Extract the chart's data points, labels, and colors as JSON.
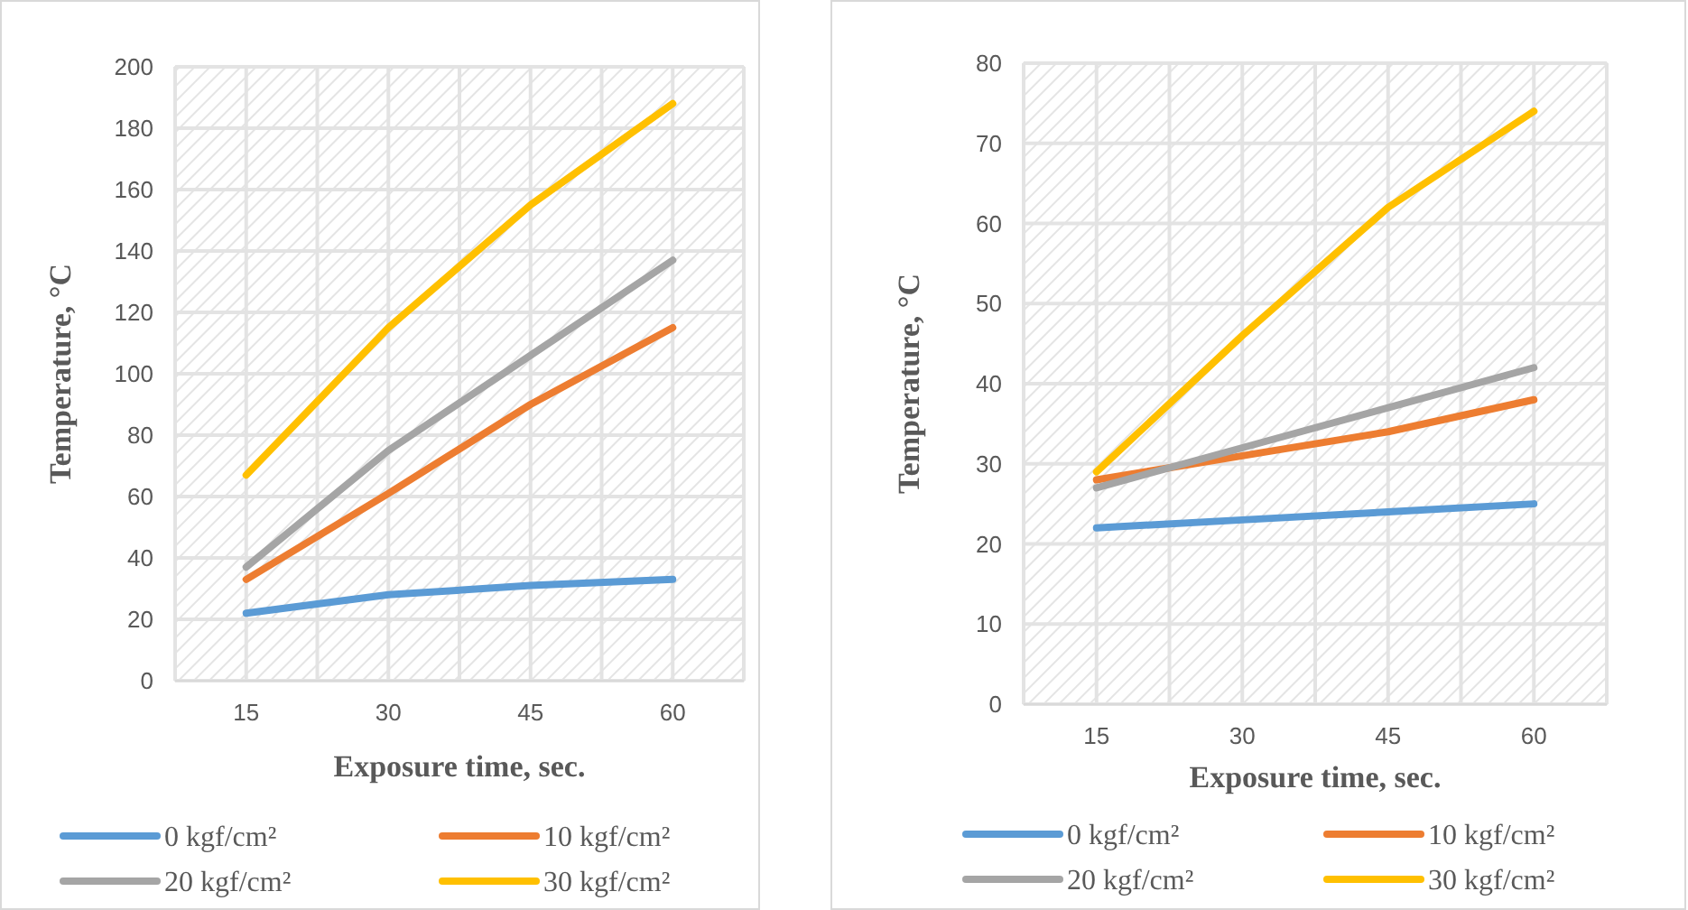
{
  "chart_data": [
    {
      "type": "line",
      "xlabel": "Exposure time, sec.",
      "ylabel": "Temperature, °C",
      "categories": [
        "15",
        "30",
        "45",
        "60"
      ],
      "ylim": [
        0,
        200
      ],
      "yticks": [
        0,
        20,
        40,
        60,
        80,
        100,
        120,
        140,
        160,
        180,
        200
      ],
      "grid": true,
      "legend": "bottom",
      "series": [
        {
          "name": "0 kgf/cm²",
          "color": "#5b9bd5",
          "values": [
            22,
            28,
            31,
            33
          ]
        },
        {
          "name": "10 kgf/cm²",
          "color": "#ed7d31",
          "values": [
            33,
            61,
            90,
            115
          ]
        },
        {
          "name": "20 kgf/cm²",
          "color": "#a5a5a5",
          "values": [
            37,
            75,
            106,
            137
          ]
        },
        {
          "name": "30 kgf/cm²",
          "color": "#ffc000",
          "values": [
            67,
            115,
            155,
            188
          ]
        }
      ]
    },
    {
      "type": "line",
      "xlabel": "Exposure time, sec.",
      "ylabel": "Temperature, °C",
      "categories": [
        "15",
        "30",
        "45",
        "60"
      ],
      "ylim": [
        0,
        80
      ],
      "yticks": [
        0,
        10,
        20,
        30,
        40,
        50,
        60,
        70,
        80
      ],
      "grid": true,
      "legend": "bottom",
      "series": [
        {
          "name": "0 kgf/cm²",
          "color": "#5b9bd5",
          "values": [
            22,
            23,
            24,
            25
          ]
        },
        {
          "name": "10 kgf/cm²",
          "color": "#ed7d31",
          "values": [
            28,
            31,
            34,
            38
          ]
        },
        {
          "name": "20 kgf/cm²",
          "color": "#a5a5a5",
          "values": [
            27,
            32,
            37,
            42
          ]
        },
        {
          "name": "30 kgf/cm²",
          "color": "#ffc000",
          "values": [
            29,
            46,
            62,
            74
          ]
        }
      ]
    }
  ]
}
